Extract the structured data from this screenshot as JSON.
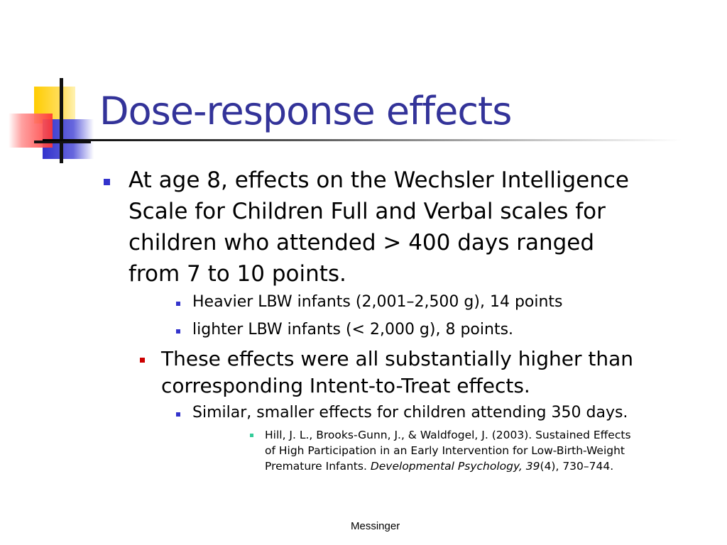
{
  "slide": {
    "title": "Dose-response effects",
    "colors": {
      "title": "#333399",
      "bullet_l1": "#3333cc",
      "bullet_l2": "#3333cc",
      "bullet_red": "#cc0000",
      "bullet_teal": "#33cc99",
      "logo_yellow": "#ffcc00",
      "logo_red": "#ff3333",
      "logo_blue": "#3333cc"
    },
    "bullets": {
      "main_lines": [
        "At age 8, effects on the Wechsler Intelligence",
        "Scale for Children Full and Verbal scales for",
        "children who attended > 400 days ranged",
        "from 7 to 10 points."
      ],
      "sub1": "Heavier LBW infants (2,001–2,500 g), 14 points",
      "sub2": "lighter LBW infants (< 2,000 g), 8 points.",
      "second_lines": [
        "These effects were all substantially higher than",
        "corresponding Intent-to-Treat effects."
      ],
      "sub3": "Similar, smaller effects for children attending 350 days.",
      "citation": {
        "line1": "Hill, J. L., Brooks-Gunn, J., & Waldfogel, J. (2003). Sustained Effects",
        "line2": "of High Participation in an Early Intervention for Low-Birth-Weight",
        "line3_plain": "Premature Infants. ",
        "line3_italic": "Developmental Psychology, 39",
        "line3_tail": "(4), 730–744."
      }
    },
    "footer": "Messinger"
  }
}
